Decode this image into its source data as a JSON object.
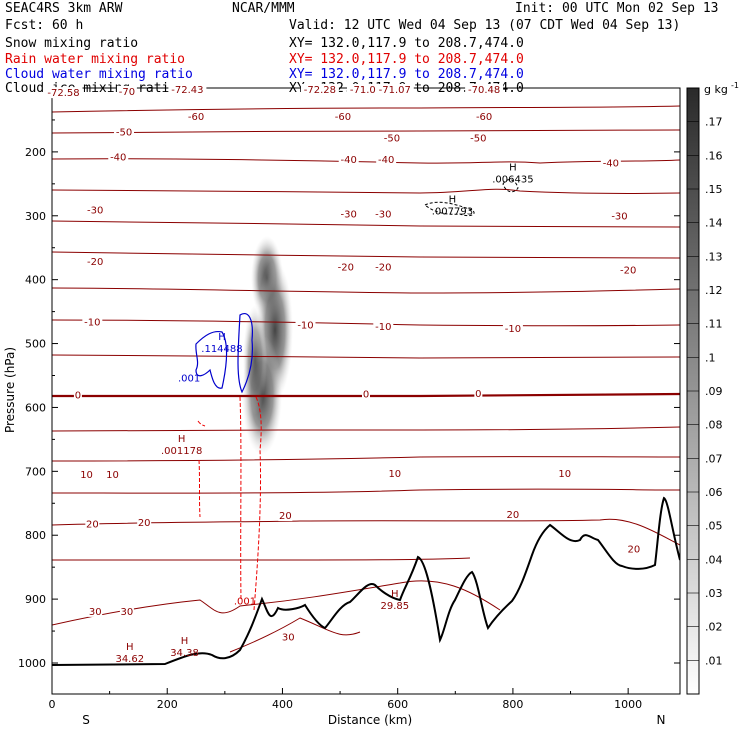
{
  "header": {
    "model": "SEAC4RS   3km ARW",
    "org": "NCAR/MMM",
    "init": "Init: 00 UTC Mon 02 Sep 13",
    "fcst": "Fcst:   60 h",
    "valid": "Valid: 12 UTC Wed 04 Sep 13 (07 CDT Wed 04 Sep 13)",
    "fields": [
      {
        "name": "Snow mixing ratio",
        "xy": "XY= 132.0,117.9 to 208.7,474.0",
        "color": "#000000"
      },
      {
        "name": "Rain water mixing ratio",
        "xy": "XY= 132.0,117.9 to 208.7,474.0",
        "color": "#e00000"
      },
      {
        "name": "Cloud water mixing ratio",
        "xy": "XY= 132.0,117.9 to 208.7,474.0",
        "color": "#0000e0"
      },
      {
        "name": "Cloud ice mixing ratio",
        "xy": "XY= 132.0,117.9 to 208.7,474.0",
        "color": "#000000"
      }
    ]
  },
  "chart_data": {
    "type": "contour",
    "xlabel": "Distance (km)",
    "ylabel": "Pressure (hPa)",
    "xlim": [
      0,
      1090
    ],
    "ylim_hpa": [
      1045,
      100
    ],
    "x_ticks": [
      "0",
      "200",
      "400",
      "600",
      "800",
      "1000"
    ],
    "y_ticks": [
      "200",
      "300",
      "400",
      "500",
      "600",
      "700",
      "800",
      "900",
      "1000"
    ],
    "x_end_labels": [
      "S",
      "N"
    ],
    "colorbar": {
      "unit": "g kg",
      "unit_exp": "-1",
      "levels": [
        ".01",
        ".02",
        ".03",
        ".04",
        ".05",
        ".06",
        ".07",
        ".08",
        ".09",
        ".1",
        ".11",
        ".12",
        ".13",
        ".14",
        ".15",
        ".16",
        ".17"
      ]
    },
    "temperature_contours_C": [
      -70,
      -60,
      -50,
      -40,
      -30,
      -20,
      -10,
      0,
      10,
      20,
      30
    ],
    "contour_labels": [
      {
        "text": "-72.58",
        "x": 20,
        "p": 108
      },
      {
        "text": "-70",
        "x": 130,
        "p": 106
      },
      {
        "text": "-72.43",
        "x": 235,
        "p": 103
      },
      {
        "text": "-72.28",
        "x": 465,
        "p": 103
      },
      {
        "text": "-71.08",
        "x": 545,
        "p": 103
      },
      {
        "text": "-71.07",
        "x": 595,
        "p": 103
      },
      {
        "text": "-70.48",
        "x": 750,
        "p": 103
      },
      {
        "text": "-60",
        "x": 250,
        "p": 145
      },
      {
        "text": "-60",
        "x": 505,
        "p": 145
      },
      {
        "text": "-60",
        "x": 750,
        "p": 145
      },
      {
        "text": "-50",
        "x": 125,
        "p": 170
      },
      {
        "text": "-50",
        "x": 590,
        "p": 179
      },
      {
        "text": "-50",
        "x": 740,
        "p": 179
      },
      {
        "text": "-40",
        "x": 115,
        "p": 209
      },
      {
        "text": "-40",
        "x": 515,
        "p": 213
      },
      {
        "text": "-40",
        "x": 580,
        "p": 213
      },
      {
        "text": "-40",
        "x": 970,
        "p": 218
      },
      {
        "text": "-30",
        "x": 75,
        "p": 292
      },
      {
        "text": "-30",
        "x": 515,
        "p": 298
      },
      {
        "text": "-30",
        "x": 575,
        "p": 298
      },
      {
        "text": "-30",
        "x": 985,
        "p": 301
      },
      {
        "text": "-20",
        "x": 75,
        "p": 372
      },
      {
        "text": "-20",
        "x": 510,
        "p": 381
      },
      {
        "text": "-20",
        "x": 575,
        "p": 381
      },
      {
        "text": "-20",
        "x": 1000,
        "p": 386
      },
      {
        "text": "-10",
        "x": 70,
        "p": 467
      },
      {
        "text": "-10",
        "x": 440,
        "p": 472
      },
      {
        "text": "-10",
        "x": 575,
        "p": 474
      },
      {
        "text": "-10",
        "x": 800,
        "p": 477
      },
      {
        "text": "0",
        "x": 45,
        "p": 581
      },
      {
        "text": "0",
        "x": 545,
        "p": 580
      },
      {
        "text": "0",
        "x": 740,
        "p": 579
      },
      {
        "text": "10",
        "x": 60,
        "p": 706
      },
      {
        "text": "10",
        "x": 105,
        "p": 706
      },
      {
        "text": "10",
        "x": 595,
        "p": 704
      },
      {
        "text": "10",
        "x": 890,
        "p": 704
      },
      {
        "text": "20",
        "x": 70,
        "p": 783
      },
      {
        "text": "20",
        "x": 160,
        "p": 781
      },
      {
        "text": "20",
        "x": 405,
        "p": 770
      },
      {
        "text": "20",
        "x": 800,
        "p": 768
      },
      {
        "text": "20",
        "x": 1010,
        "p": 822
      },
      {
        "text": "30",
        "x": 75,
        "p": 920
      },
      {
        "text": "30",
        "x": 130,
        "p": 920
      },
      {
        "text": "30",
        "x": 410,
        "p": 960
      }
    ],
    "extrema": [
      {
        "letter": "H",
        "value": ".007793",
        "x": 695,
        "p": 295,
        "color": "#000000"
      },
      {
        "letter": "H",
        "value": ".006435",
        "x": 800,
        "p": 245,
        "color": "#000000"
      },
      {
        "letter": "H",
        "value": ".114488",
        "x": 295,
        "p": 510,
        "color": "#0000cc"
      },
      {
        "value": ".001",
        "x": 238,
        "p": 556,
        "color": "#0000cc"
      },
      {
        "letter": "H",
        "value": ".001178",
        "x": 225,
        "p": 670,
        "color": "#8b0000"
      },
      {
        "value": ".001",
        "x": 335,
        "p": 905,
        "color": "#cc0000"
      },
      {
        "letter": "H",
        "value": "29.85",
        "x": 595,
        "p": 912,
        "color": "#8b0000"
      },
      {
        "letter": "H",
        "value": "34.62",
        "x": 135,
        "p": 995,
        "color": "#8b0000"
      },
      {
        "letter": "H",
        "value": "34.38",
        "x": 230,
        "p": 986,
        "color": "#8b0000"
      }
    ]
  }
}
